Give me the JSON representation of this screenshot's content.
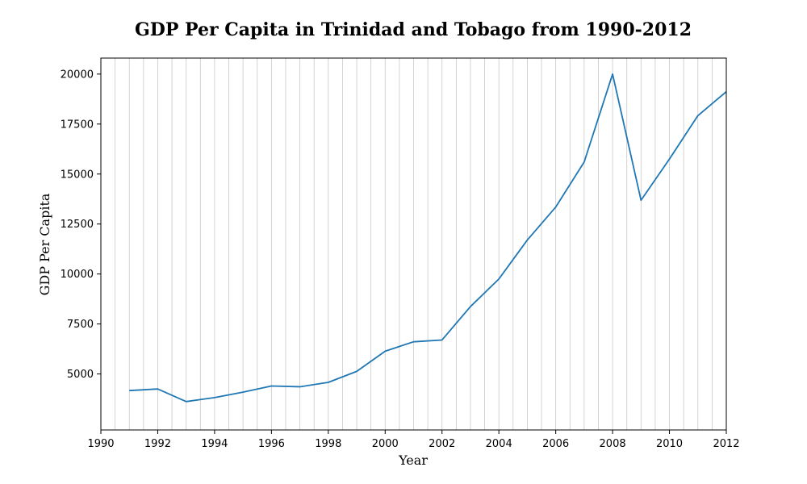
{
  "chart_data": {
    "type": "line",
    "title": "GDP Per Capita in Trinidad and Tobago from 1990-2012",
    "xlabel": "Year",
    "ylabel": "GDP Per Capita",
    "xlim": [
      1990,
      2012
    ],
    "ylim": [
      2200,
      20800
    ],
    "x_ticks": [
      1990,
      1992,
      1994,
      1996,
      1998,
      2000,
      2002,
      2004,
      2006,
      2008,
      2010,
      2012
    ],
    "y_ticks": [
      5000,
      7500,
      10000,
      12500,
      15000,
      17500,
      20000
    ],
    "grid": "vertical, every 0.5 year",
    "line_color": "#1f77b4",
    "grid_color": "#c8c8c8",
    "series": [
      {
        "x": [
          1991,
          1992,
          1993,
          1994,
          1995,
          1996,
          1997,
          1998,
          1999,
          2000,
          2001,
          2002,
          2003,
          2004,
          2005,
          2006,
          2007,
          2008,
          2009,
          2010,
          2011,
          2012
        ],
        "values": [
          4170,
          4250,
          3620,
          3820,
          4090,
          4400,
          4360,
          4580,
          5130,
          6140,
          6610,
          6700,
          8370,
          9750,
          11700,
          13350,
          15600,
          20000,
          13690,
          15750,
          17920,
          19120
        ]
      }
    ]
  }
}
